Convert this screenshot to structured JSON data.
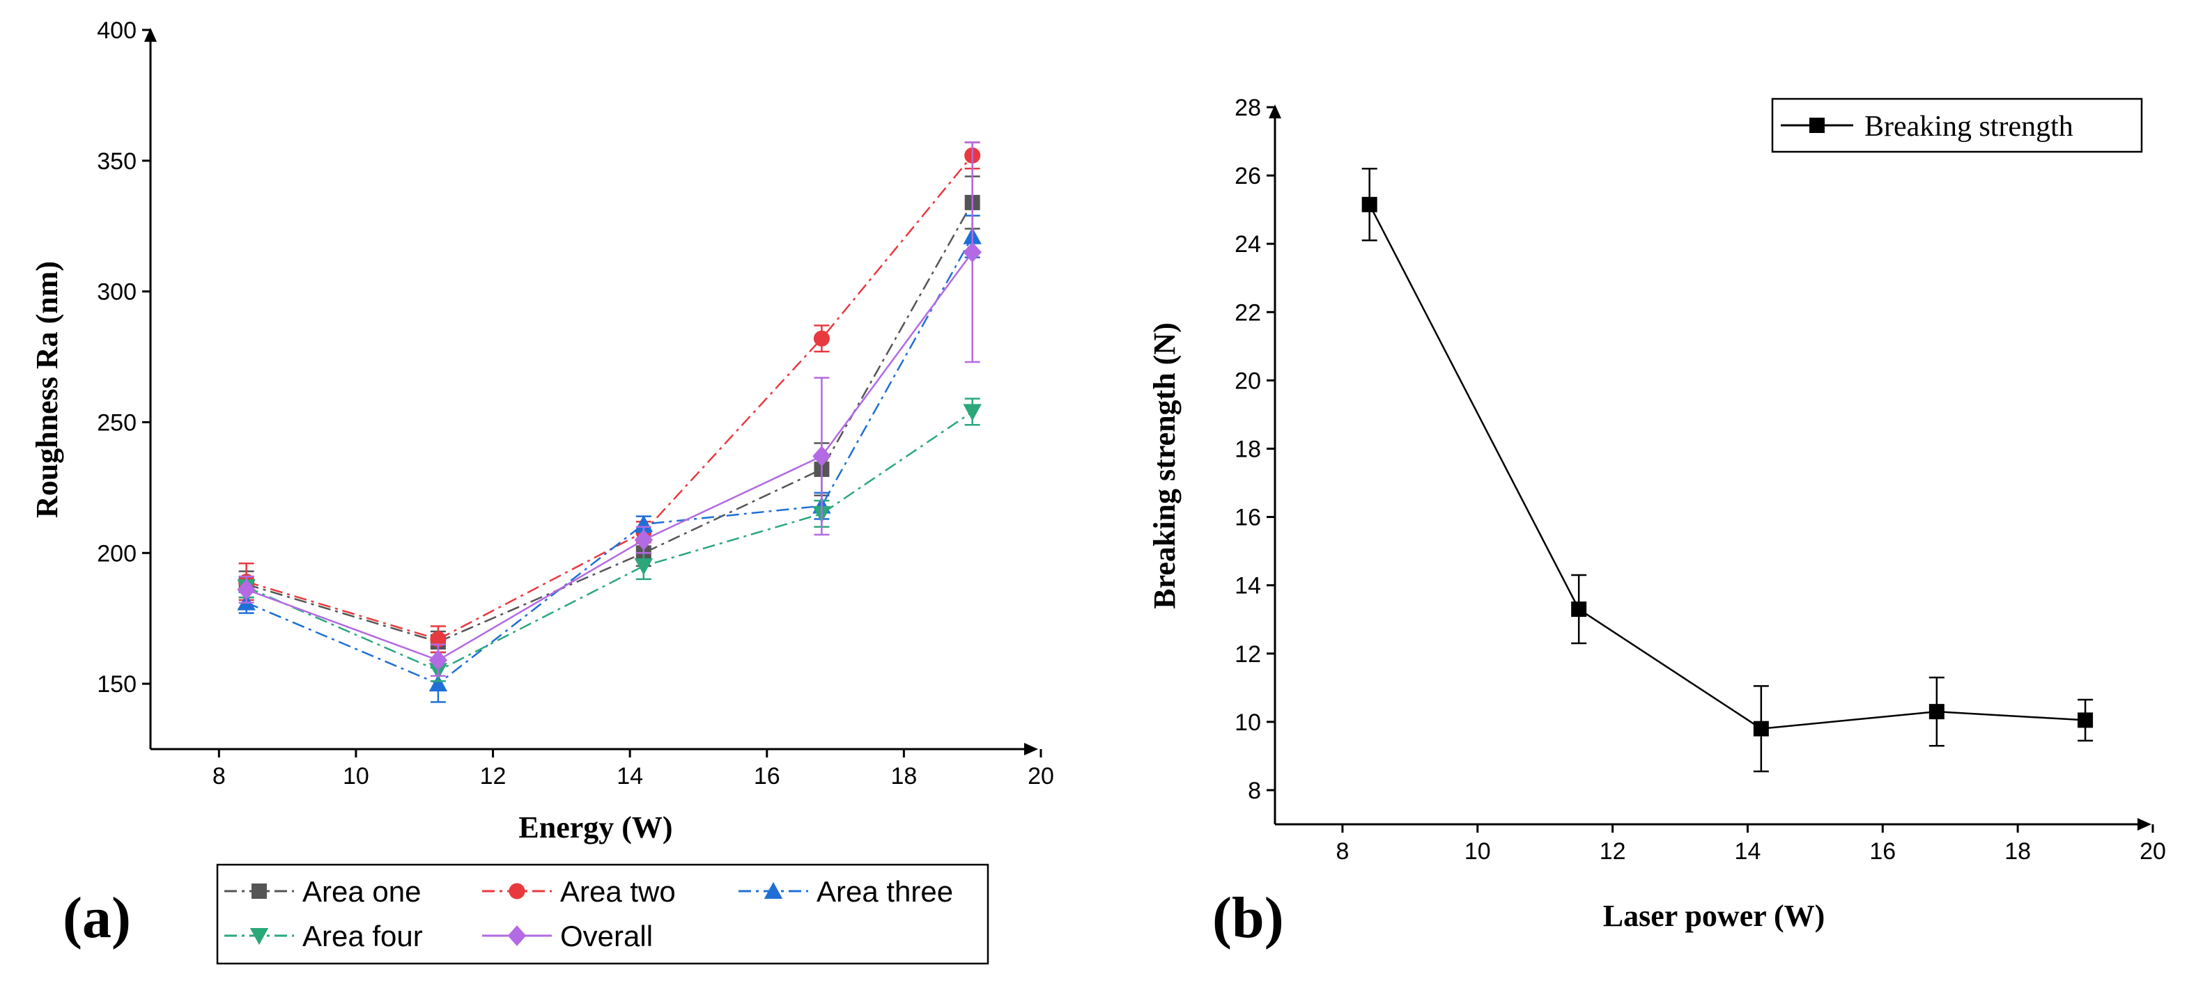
{
  "chart_data": [
    {
      "type": "line",
      "panel_label": "(a)",
      "title": "",
      "xlabel": "Energy (W)",
      "ylabel": "Roughness Ra (nm)",
      "xlim": [
        7,
        20
      ],
      "ylim": [
        125,
        400
      ],
      "xticks": [
        8,
        10,
        12,
        14,
        16,
        18,
        20
      ],
      "yticks": [
        150,
        200,
        250,
        300,
        350,
        400
      ],
      "x": [
        8.4,
        11.2,
        14.2,
        16.8,
        19.0
      ],
      "legend": "below",
      "series": [
        {
          "name": "Area one",
          "color": "#555555",
          "marker": "square",
          "dash": "dashdot",
          "values": [
            188,
            166,
            200,
            232,
            334
          ],
          "errors": [
            5,
            4,
            5,
            10,
            10
          ]
        },
        {
          "name": "Area two",
          "color": "#e8393f",
          "marker": "circle",
          "dash": "dashdot",
          "values": [
            189,
            167,
            208,
            282,
            352
          ],
          "errors": [
            7,
            5,
            4,
            5,
            5
          ]
        },
        {
          "name": "Area three",
          "color": "#1f6fd6",
          "marker": "triangle-up",
          "dash": "dashdot",
          "values": [
            181,
            150,
            211,
            218,
            321
          ],
          "errors": [
            4,
            7,
            3,
            5,
            8
          ]
        },
        {
          "name": "Area four",
          "color": "#2aa87a",
          "marker": "triangle-down",
          "dash": "dashdot",
          "values": [
            187,
            155,
            195,
            215,
            254
          ],
          "errors": [
            4,
            4,
            5,
            5,
            5
          ]
        },
        {
          "name": "Overall",
          "color": "#b36ae2",
          "marker": "diamond",
          "dash": "solid",
          "values": [
            186,
            159,
            205,
            237,
            315
          ],
          "errors": [
            5,
            6,
            5,
            30,
            42
          ]
        }
      ]
    },
    {
      "type": "line",
      "panel_label": "(b)",
      "title": "",
      "xlabel": "Laser power (W)",
      "ylabel": "Breaking strength (N)",
      "xlim": [
        7,
        20
      ],
      "ylim": [
        7,
        28
      ],
      "xticks": [
        8,
        10,
        12,
        14,
        16,
        18,
        20
      ],
      "yticks": [
        8,
        10,
        12,
        14,
        16,
        18,
        20,
        22,
        24,
        26,
        28
      ],
      "x": [
        8.4,
        11.5,
        14.2,
        16.8,
        19.0
      ],
      "legend": "top-right",
      "series": [
        {
          "name": "Breaking strength",
          "color": "#000000",
          "marker": "square",
          "dash": "solid",
          "values": [
            25.15,
            13.3,
            9.8,
            10.3,
            10.05
          ],
          "errors": [
            1.05,
            1.0,
            1.25,
            1.0,
            0.6
          ]
        }
      ]
    }
  ]
}
